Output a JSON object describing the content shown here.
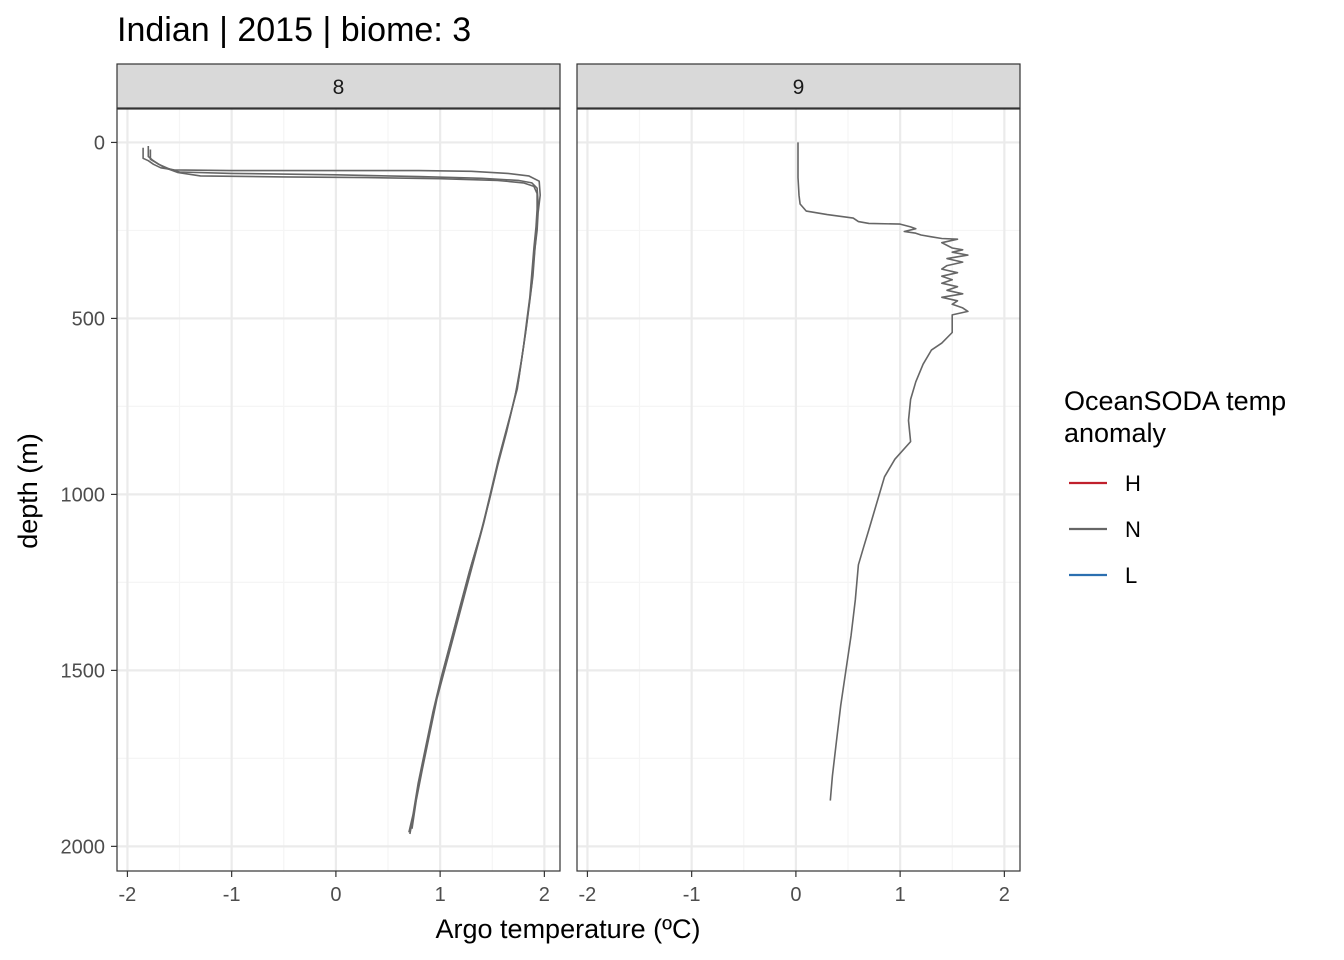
{
  "chart_data": {
    "type": "line",
    "title": "Indian | 2015 | biome: 3",
    "xlabel": "Argo temperature (ºC)",
    "ylabel": "depth (m)",
    "xlim": [
      -2.1,
      2.15
    ],
    "ylim": [
      2070,
      -95
    ],
    "y_reversed": true,
    "x_ticks": [
      -2,
      -1,
      0,
      1,
      2
    ],
    "x_tick_labels": [
      "-2",
      "-1",
      "0",
      "1",
      "2"
    ],
    "y_ticks": [
      0,
      500,
      1000,
      1500,
      2000
    ],
    "y_tick_labels": [
      "0",
      "500",
      "1000",
      "1500",
      "2000"
    ],
    "grid": true,
    "facets": [
      {
        "label": "8",
        "series": [
          {
            "class": "N",
            "points": [
              [
                -1.85,
                15
              ],
              [
                -1.85,
                45
              ],
              [
                -1.8,
                52
              ],
              [
                -1.75,
                62
              ],
              [
                -1.68,
                72
              ],
              [
                -1.55,
                78
              ],
              [
                -1.0,
                80
              ],
              [
                0.0,
                80
              ],
              [
                0.8,
                80
              ],
              [
                1.3,
                82
              ],
              [
                1.65,
                88
              ],
              [
                1.85,
                95
              ],
              [
                1.95,
                110
              ],
              [
                1.96,
                150
              ],
              [
                1.94,
                200
              ],
              [
                1.93,
                250
              ],
              [
                1.91,
                300
              ],
              [
                1.89,
                380
              ],
              [
                1.86,
                450
              ],
              [
                1.83,
                520
              ],
              [
                1.79,
                600
              ],
              [
                1.74,
                700
              ],
              [
                1.65,
                800
              ],
              [
                1.56,
                900
              ],
              [
                1.48,
                1000
              ],
              [
                1.4,
                1100
              ],
              [
                1.3,
                1200
              ],
              [
                1.21,
                1300
              ],
              [
                1.12,
                1400
              ],
              [
                1.03,
                1500
              ],
              [
                0.95,
                1600
              ],
              [
                0.88,
                1700
              ],
              [
                0.81,
                1800
              ],
              [
                0.75,
                1900
              ],
              [
                0.71,
                1965
              ]
            ]
          },
          {
            "class": "N",
            "points": [
              [
                -1.8,
                10
              ],
              [
                -1.8,
                40
              ],
              [
                -1.76,
                50
              ],
              [
                -1.7,
                62
              ],
              [
                -1.6,
                75
              ],
              [
                -1.5,
                84
              ],
              [
                -1.0,
                88
              ],
              [
                0.0,
                92
              ],
              [
                0.8,
                97
              ],
              [
                1.4,
                102
              ],
              [
                1.75,
                108
              ],
              [
                1.88,
                115
              ],
              [
                1.93,
                130
              ],
              [
                1.94,
                170
              ],
              [
                1.93,
                220
              ],
              [
                1.92,
                270
              ],
              [
                1.9,
                330
              ],
              [
                1.88,
                400
              ],
              [
                1.85,
                470
              ],
              [
                1.82,
                540
              ],
              [
                1.78,
                620
              ],
              [
                1.72,
                720
              ],
              [
                1.64,
                820
              ],
              [
                1.55,
                920
              ],
              [
                1.47,
                1020
              ],
              [
                1.38,
                1120
              ],
              [
                1.28,
                1220
              ],
              [
                1.19,
                1320
              ],
              [
                1.1,
                1420
              ],
              [
                1.01,
                1520
              ],
              [
                0.93,
                1620
              ],
              [
                0.86,
                1720
              ],
              [
                0.79,
                1820
              ],
              [
                0.74,
                1910
              ],
              [
                0.7,
                1960
              ]
            ]
          },
          {
            "class": "N",
            "points": [
              [
                -1.78,
                20
              ],
              [
                -1.78,
                48
              ],
              [
                -1.72,
                58
              ],
              [
                -1.64,
                72
              ],
              [
                -1.52,
                85
              ],
              [
                -1.3,
                95
              ],
              [
                -0.5,
                98
              ],
              [
                0.3,
                100
              ],
              [
                1.0,
                103
              ],
              [
                1.55,
                108
              ],
              [
                1.8,
                115
              ],
              [
                1.9,
                125
              ],
              [
                1.93,
                145
              ],
              [
                1.93,
                190
              ],
              [
                1.92,
                240
              ],
              [
                1.9,
                300
              ],
              [
                1.88,
                370
              ],
              [
                1.86,
                440
              ],
              [
                1.83,
                510
              ],
              [
                1.8,
                580
              ],
              [
                1.75,
                680
              ],
              [
                1.67,
                780
              ],
              [
                1.58,
                880
              ],
              [
                1.5,
                980
              ],
              [
                1.42,
                1080
              ],
              [
                1.33,
                1180
              ],
              [
                1.24,
                1280
              ],
              [
                1.15,
                1380
              ],
              [
                1.06,
                1480
              ],
              [
                0.97,
                1580
              ],
              [
                0.9,
                1680
              ],
              [
                0.83,
                1780
              ],
              [
                0.77,
                1870
              ],
              [
                0.73,
                1950
              ]
            ]
          }
        ]
      },
      {
        "label": "9",
        "series": [
          {
            "class": "N",
            "points": [
              [
                0.02,
                0
              ],
              [
                0.02,
                50
              ],
              [
                0.02,
                100
              ],
              [
                0.03,
                150
              ],
              [
                0.04,
                175
              ],
              [
                0.1,
                195
              ],
              [
                0.3,
                205
              ],
              [
                0.55,
                215
              ],
              [
                0.6,
                225
              ],
              [
                0.7,
                230
              ],
              [
                1.0,
                232
              ],
              [
                1.1,
                240
              ],
              [
                1.15,
                245
              ],
              [
                1.04,
                253
              ],
              [
                1.15,
                258
              ],
              [
                1.2,
                263
              ],
              [
                1.3,
                268
              ],
              [
                1.4,
                273
              ],
              [
                1.55,
                275
              ],
              [
                1.4,
                285
              ],
              [
                1.5,
                300
              ],
              [
                1.6,
                305
              ],
              [
                1.5,
                312
              ],
              [
                1.65,
                320
              ],
              [
                1.45,
                330
              ],
              [
                1.6,
                340
              ],
              [
                1.45,
                350
              ],
              [
                1.4,
                360
              ],
              [
                1.55,
                370
              ],
              [
                1.4,
                380
              ],
              [
                1.5,
                390
              ],
              [
                1.4,
                400
              ],
              [
                1.55,
                410
              ],
              [
                1.45,
                420
              ],
              [
                1.6,
                430
              ],
              [
                1.4,
                440
              ],
              [
                1.55,
                450
              ],
              [
                1.5,
                460
              ],
              [
                1.6,
                470
              ],
              [
                1.65,
                480
              ],
              [
                1.5,
                490
              ],
              [
                1.5,
                510
              ],
              [
                1.5,
                540
              ],
              [
                1.4,
                570
              ],
              [
                1.3,
                590
              ],
              [
                1.22,
                630
              ],
              [
                1.15,
                680
              ],
              [
                1.1,
                730
              ],
              [
                1.08,
                790
              ],
              [
                1.1,
                850
              ],
              [
                0.95,
                900
              ],
              [
                0.85,
                950
              ],
              [
                0.8,
                1000
              ],
              [
                0.75,
                1050
              ],
              [
                0.7,
                1100
              ],
              [
                0.65,
                1150
              ],
              [
                0.6,
                1200
              ],
              [
                0.57,
                1300
              ],
              [
                0.53,
                1400
              ],
              [
                0.48,
                1500
              ],
              [
                0.43,
                1600
              ],
              [
                0.39,
                1700
              ],
              [
                0.35,
                1800
              ],
              [
                0.33,
                1870
              ]
            ]
          }
        ]
      }
    ],
    "legend": {
      "title_lines": [
        "OceanSODA temp",
        "anomaly"
      ],
      "placement": "right",
      "items": [
        {
          "label": "H",
          "color": "#c0202c"
        },
        {
          "label": "N",
          "color": "#666666"
        },
        {
          "label": "L",
          "color": "#2b6fb0"
        }
      ]
    },
    "colors": {
      "H": "#c0202c",
      "N": "#666666",
      "L": "#2b6fb0",
      "strip_bg": "#d9d9d9",
      "grid_major": "#ebebeb",
      "grid_minor": "#f5f5f5"
    }
  }
}
